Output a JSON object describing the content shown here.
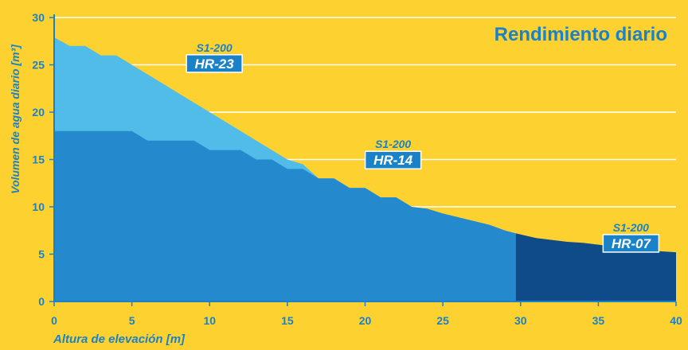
{
  "chart_data": {
    "type": "area",
    "title": "Rendimiento diario",
    "xlabel": "Altura de elevación [m]",
    "ylabel": "Volumen de agua diario  [m³]",
    "xlim": [
      0,
      40
    ],
    "ylim": [
      0,
      30
    ],
    "x_ticks": [
      "0",
      "5",
      "10",
      "15",
      "20",
      "25",
      "30",
      "35",
      "40"
    ],
    "y_ticks": [
      "0",
      "5",
      "10",
      "15",
      "20",
      "25",
      "30"
    ],
    "grid": true,
    "series": [
      {
        "model": "S1-200",
        "name": "HR-23",
        "color": "#52bce9",
        "x": [
          0,
          1,
          2,
          3,
          4,
          5,
          6,
          7,
          8,
          9,
          10,
          11,
          12,
          13,
          14,
          15,
          16,
          17,
          18,
          19,
          20,
          21,
          22,
          23
        ],
        "y": [
          27.9,
          27.0,
          27.0,
          26.0,
          26.0,
          25.0,
          24.0,
          23.0,
          22.0,
          21.0,
          20.0,
          19.0,
          18.0,
          17.0,
          16.0,
          15.0,
          14.5,
          13.0,
          13.0,
          12.0,
          12.0,
          11.0,
          11.0,
          10.0
        ]
      },
      {
        "model": "S1-200",
        "name": "HR-14",
        "color": "#2589cd",
        "x": [
          0,
          1,
          2,
          3,
          4,
          5,
          6,
          7,
          8,
          9,
          10,
          11,
          12,
          13,
          14,
          15,
          16,
          17,
          18,
          19,
          20,
          21,
          22,
          23,
          24,
          25,
          26,
          27,
          28,
          29,
          29.7,
          30.7
        ],
        "y": [
          18.0,
          18.0,
          18.0,
          18.0,
          18.0,
          18.0,
          17.0,
          17.0,
          17.0,
          17.0,
          16.0,
          16.0,
          16.0,
          15.0,
          15.0,
          14.0,
          14.0,
          13.0,
          13.0,
          12.0,
          12.0,
          11.0,
          11.0,
          10.0,
          9.8,
          9.3,
          8.9,
          8.5,
          8.1,
          7.5,
          7.2,
          0
        ]
      },
      {
        "model": "S1-200",
        "name": "HR-07",
        "color": "#0f4b88",
        "x": [
          29.7,
          31,
          32,
          33,
          34,
          35,
          36,
          37,
          38,
          39,
          40
        ],
        "y": [
          7.2,
          6.7,
          6.5,
          6.3,
          6.2,
          6.0,
          5.8,
          5.7,
          5.5,
          5.3,
          5.2
        ]
      }
    ],
    "labels": [
      {
        "model": "S1-200",
        "name": "HR-23",
        "x": 10.3,
        "y": 26.4
      },
      {
        "model": "S1-200",
        "name": "HR-14",
        "x": 21.8,
        "y": 16.2
      },
      {
        "model": "S1-200",
        "name": "HR-07",
        "x": 37.1,
        "y": 7.4
      }
    ],
    "colors": {
      "background": "#fdd130",
      "accent": "#1a82c8",
      "grid": "#ffffff",
      "label_fill": "#1a82c8",
      "label_text": "#ffffff"
    }
  }
}
